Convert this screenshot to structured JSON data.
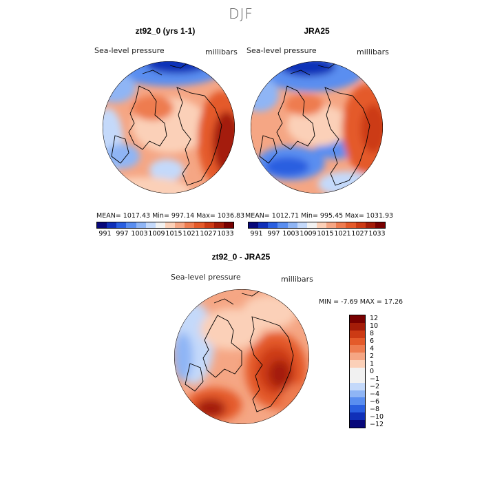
{
  "season": "DJF",
  "panels": {
    "model": {
      "title": "zt92_0 (yrs 1-1)",
      "variable": "Sea-level pressure",
      "units": "millibars",
      "stats": "MEAN= 1017.43   Min= 997.14   Max= 1036.83"
    },
    "obs": {
      "title": "JRA25",
      "variable": "Sea-level pressure",
      "units": "millibars",
      "stats": "MEAN= 1012.71   Min= 995.45   Max= 1031.93"
    },
    "diff": {
      "title": "zt92_0 - JRA25",
      "variable": "Sea-level pressure",
      "units": "millibars",
      "stats": "MIN =   -7.69  MAX =   17.26"
    }
  },
  "colorbar_abs": {
    "colors": [
      "#08087a",
      "#1030b8",
      "#2a5fe0",
      "#5a8ef0",
      "#8fb5f5",
      "#c4d9fa",
      "#f1f1f1",
      "#fbd0b8",
      "#f5a684",
      "#ee7c50",
      "#e45a2a",
      "#cc3a14",
      "#a41c08",
      "#780000"
    ],
    "ticks": [
      "991",
      "997",
      "1003",
      "1009",
      "1015",
      "1021",
      "1027",
      "1033"
    ]
  },
  "colorbar_diff": {
    "colors": [
      "#780000",
      "#a41c08",
      "#cc3a14",
      "#e45a2a",
      "#ee7c50",
      "#f5a684",
      "#fbd0b8",
      "#f1f1f1",
      "#f1f1f1",
      "#c4d9fa",
      "#8fb5f5",
      "#5a8ef0",
      "#2a5fe0",
      "#1030b8",
      "#08087a"
    ],
    "ticks": [
      "12",
      "10",
      "8",
      "6",
      "4",
      "2",
      "1",
      "0",
      "−1",
      "−2",
      "−4",
      "−6",
      "−8",
      "−10",
      "−12"
    ]
  }
}
